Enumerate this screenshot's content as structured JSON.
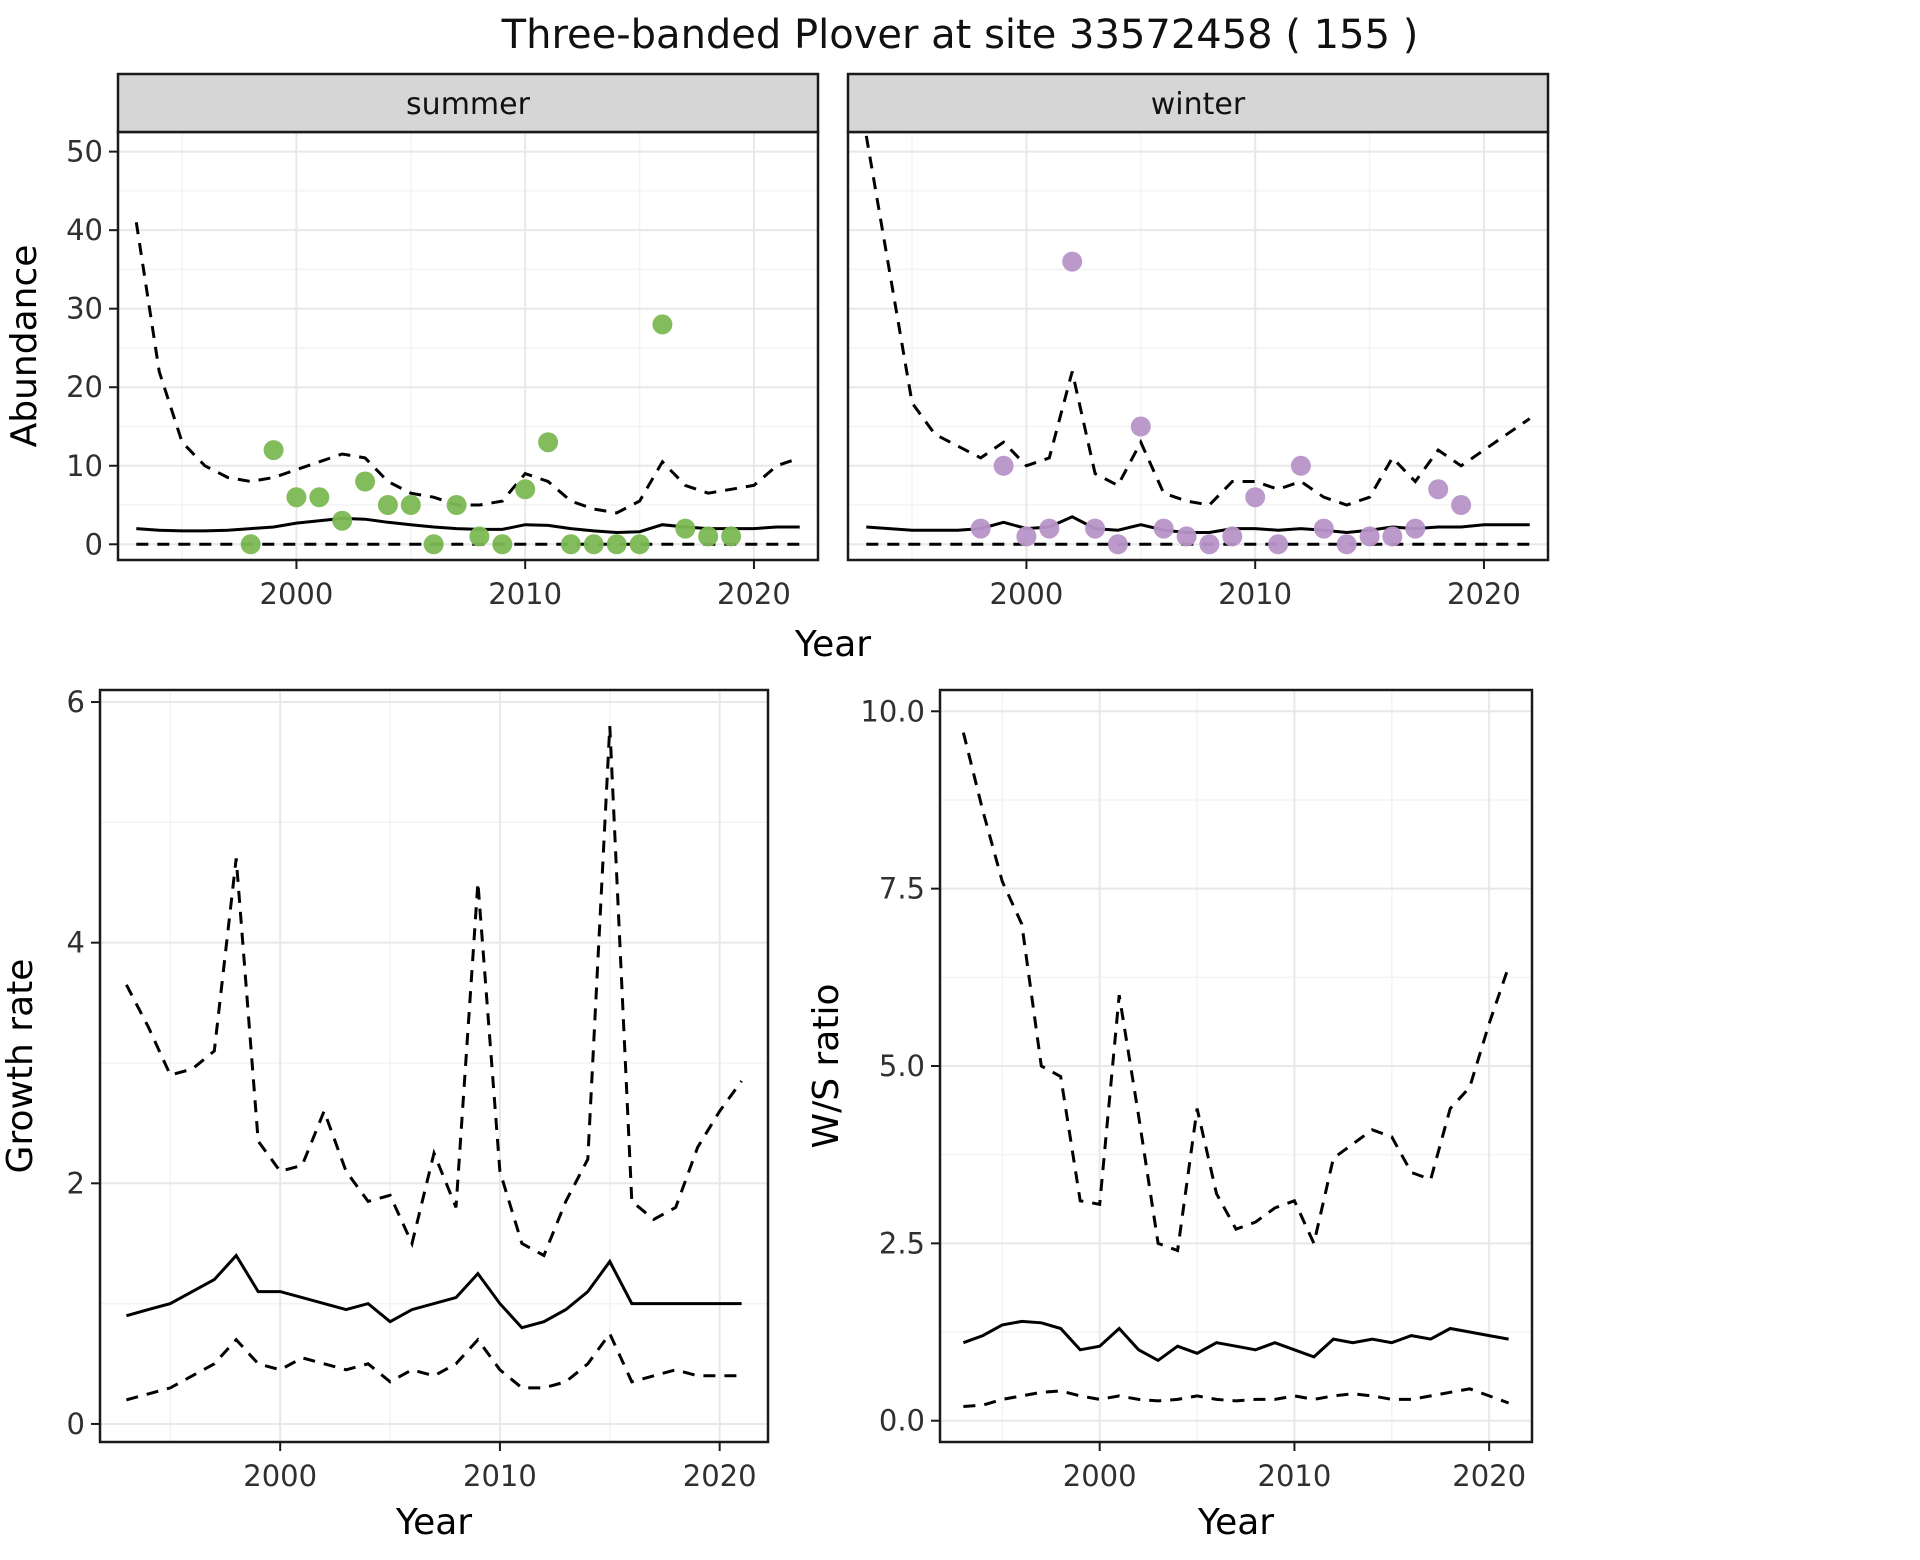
{
  "title": "Three-banded Plover at site 33572458 ( 155 )",
  "colors": {
    "summer_point": "#7cb853",
    "winter_point": "#b893c8",
    "line": "#000000",
    "strip_bg": "#d6d6d6",
    "strip_border": "#1a1a1a",
    "panel_border": "#1a1a1a",
    "grid_major": "#e8e8e8",
    "grid_minor": "#f3f3f3",
    "background": "#ffffff"
  },
  "chart_data": [
    {
      "id": "abundance-summer",
      "type": "scatter",
      "facet_label": "summer",
      "ylabel": "Abundance",
      "xlabel": "Year",
      "xlim": [
        1992.2,
        2022.8
      ],
      "ylim": [
        -2,
        52.5
      ],
      "xticks": [
        2000,
        2010,
        2020
      ],
      "xtick_labels": [
        "2000",
        "2010",
        "2020"
      ],
      "yticks": [
        0,
        10,
        20,
        30,
        40,
        50
      ],
      "ytick_labels": [
        "0",
        "10",
        "20",
        "30",
        "40",
        "50"
      ],
      "point_color": "summer_point",
      "line_x": [
        1993,
        1994,
        1995,
        1996,
        1997,
        1998,
        1999,
        2000,
        2001,
        2002,
        2003,
        2004,
        2005,
        2006,
        2007,
        2008,
        2009,
        2010,
        2011,
        2012,
        2013,
        2014,
        2015,
        2016,
        2017,
        2018,
        2019,
        2020,
        2021,
        2022
      ],
      "upper": [
        41,
        22,
        13,
        10,
        8.5,
        8,
        8.5,
        9.5,
        10.5,
        11.5,
        11,
        8,
        6.5,
        6,
        5,
        5,
        5.5,
        9,
        8,
        5.5,
        4.5,
        4,
        5.5,
        10.5,
        7.5,
        6.5,
        7,
        7.5,
        10,
        11
      ],
      "mean": [
        2,
        1.8,
        1.7,
        1.7,
        1.8,
        2,
        2.2,
        2.7,
        3,
        3.3,
        3.2,
        2.8,
        2.5,
        2.2,
        2,
        1.9,
        1.9,
        2.5,
        2.4,
        2,
        1.7,
        1.5,
        1.6,
        2.5,
        2.2,
        2,
        2,
        2,
        2.2,
        2.2
      ],
      "lower": [
        0,
        0,
        0,
        0,
        0,
        0,
        0,
        0,
        0,
        0,
        0,
        0,
        0,
        0,
        0,
        0,
        0,
        0,
        0,
        0,
        0,
        0,
        0,
        0,
        0,
        0,
        0,
        0,
        0,
        0
      ],
      "points_x": [
        1998,
        1999,
        2000,
        2001,
        2002,
        2003,
        2004,
        2005,
        2006,
        2007,
        2008,
        2009,
        2010,
        2011,
        2012,
        2013,
        2014,
        2015,
        2016,
        2017,
        2018,
        2019
      ],
      "points_y": [
        0,
        12,
        6,
        6,
        3,
        8,
        5,
        5,
        0,
        5,
        1,
        0,
        7,
        13,
        0,
        0,
        0,
        0,
        28,
        2,
        1,
        1
      ]
    },
    {
      "id": "abundance-winter",
      "type": "scatter",
      "facet_label": "winter",
      "ylabel": "",
      "xlabel": "Year",
      "xlim": [
        1992.2,
        2022.8
      ],
      "ylim": [
        -2,
        52.5
      ],
      "xticks": [
        2000,
        2010,
        2020
      ],
      "xtick_labels": [
        "2000",
        "2010",
        "2020"
      ],
      "yticks": [
        0,
        10,
        20,
        30,
        40,
        50
      ],
      "ytick_labels": [
        "0",
        "10",
        "20",
        "30",
        "40",
        "50"
      ],
      "point_color": "winter_point",
      "line_x": [
        1993,
        1994,
        1995,
        1996,
        1997,
        1998,
        1999,
        2000,
        2001,
        2002,
        2003,
        2004,
        2005,
        2006,
        2007,
        2008,
        2009,
        2010,
        2011,
        2012,
        2013,
        2014,
        2015,
        2016,
        2017,
        2018,
        2019,
        2020,
        2021,
        2022
      ],
      "upper": [
        52,
        35,
        18,
        14,
        12.5,
        11,
        13,
        10,
        11,
        22,
        9,
        7.5,
        13,
        6.5,
        5.5,
        5,
        8,
        8,
        7,
        8,
        6,
        5,
        6,
        11,
        8,
        12,
        10,
        12,
        14,
        16
      ],
      "mean": [
        2.2,
        2,
        1.8,
        1.8,
        1.8,
        2,
        2.8,
        2,
        2.2,
        3.5,
        2,
        1.8,
        2.5,
        1.8,
        1.5,
        1.5,
        2,
        2,
        1.8,
        2,
        1.8,
        1.5,
        1.8,
        2.2,
        2,
        2.2,
        2.2,
        2.5,
        2.5,
        2.5
      ],
      "lower": [
        0,
        0,
        0,
        0,
        0,
        0,
        0,
        0,
        0,
        0,
        0,
        0,
        0,
        0,
        0,
        0,
        0,
        0,
        0,
        0,
        0,
        0,
        0,
        0,
        0,
        0,
        0,
        0,
        0,
        0
      ],
      "points_x": [
        1998,
        1999,
        2000,
        2001,
        2002,
        2003,
        2004,
        2005,
        2006,
        2007,
        2008,
        2009,
        2010,
        2011,
        2012,
        2013,
        2014,
        2015,
        2016,
        2017,
        2018,
        2019
      ],
      "points_y": [
        2,
        10,
        1,
        2,
        36,
        2,
        0,
        15,
        2,
        1,
        0,
        1,
        6,
        0,
        10,
        2,
        0,
        1,
        1,
        2,
        7,
        5
      ]
    },
    {
      "id": "growth-rate",
      "type": "line",
      "facet_label": "",
      "ylabel": "Growth rate",
      "xlabel": "Year",
      "xlim": [
        1991.8,
        2022.2
      ],
      "ylim": [
        -0.15,
        6.1
      ],
      "xticks": [
        2000,
        2010,
        2020
      ],
      "xtick_labels": [
        "2000",
        "2010",
        "2020"
      ],
      "yticks": [
        0,
        2,
        4,
        6
      ],
      "ytick_labels": [
        "0",
        "2",
        "4",
        "6"
      ],
      "point_color": "",
      "line_x": [
        1993,
        1994,
        1995,
        1996,
        1997,
        1998,
        1999,
        2000,
        2001,
        2002,
        2003,
        2004,
        2005,
        2006,
        2007,
        2008,
        2009,
        2010,
        2011,
        2012,
        2013,
        2014,
        2015,
        2016,
        2017,
        2018,
        2019,
        2020,
        2021
      ],
      "upper": [
        3.65,
        3.3,
        2.9,
        2.95,
        3.1,
        4.7,
        2.35,
        2.1,
        2.15,
        2.6,
        2.1,
        1.85,
        1.9,
        1.5,
        2.25,
        1.8,
        4.5,
        2.1,
        1.5,
        1.4,
        1.85,
        2.2,
        5.8,
        1.85,
        1.7,
        1.8,
        2.3,
        2.6,
        2.85
      ],
      "mean": [
        0.9,
        0.95,
        1.0,
        1.1,
        1.2,
        1.4,
        1.1,
        1.1,
        1.05,
        1.0,
        0.95,
        1.0,
        0.85,
        0.95,
        1.0,
        1.05,
        1.25,
        1.0,
        0.8,
        0.85,
        0.95,
        1.1,
        1.35,
        1.0,
        1.0,
        1.0,
        1.0,
        1.0,
        1.0
      ],
      "lower": [
        0.2,
        0.25,
        0.3,
        0.4,
        0.5,
        0.7,
        0.5,
        0.45,
        0.55,
        0.5,
        0.45,
        0.5,
        0.35,
        0.45,
        0.4,
        0.5,
        0.7,
        0.45,
        0.3,
        0.3,
        0.35,
        0.5,
        0.75,
        0.35,
        0.4,
        0.45,
        0.4,
        0.4,
        0.4
      ],
      "points_x": [],
      "points_y": []
    },
    {
      "id": "ws-ratio",
      "type": "line",
      "facet_label": "",
      "ylabel": "W/S ratio",
      "xlabel": "Year",
      "xlim": [
        1991.8,
        2022.2
      ],
      "ylim": [
        -0.3,
        10.3
      ],
      "xticks": [
        2000,
        2010,
        2020
      ],
      "xtick_labels": [
        "2000",
        "2010",
        "2020"
      ],
      "yticks": [
        0,
        2.5,
        5,
        7.5,
        10
      ],
      "ytick_labels": [
        "0.0",
        "2.5",
        "5.0",
        "7.5",
        "10.0"
      ],
      "point_color": "",
      "line_x": [
        1993,
        1994,
        1995,
        1996,
        1997,
        1998,
        1999,
        2000,
        2001,
        2002,
        2003,
        2004,
        2005,
        2006,
        2007,
        2008,
        2009,
        2010,
        2011,
        2012,
        2013,
        2014,
        2015,
        2016,
        2017,
        2018,
        2019,
        2020,
        2021
      ],
      "upper": [
        9.7,
        8.6,
        7.6,
        7.0,
        5.0,
        4.85,
        3.1,
        3.05,
        6.0,
        4.3,
        2.5,
        2.4,
        4.4,
        3.2,
        2.7,
        2.8,
        3.0,
        3.1,
        2.5,
        3.7,
        3.9,
        4.1,
        4.0,
        3.5,
        3.4,
        4.4,
        4.7,
        5.6,
        6.4
      ],
      "mean": [
        1.1,
        1.2,
        1.35,
        1.4,
        1.38,
        1.3,
        1.0,
        1.05,
        1.3,
        1.0,
        0.85,
        1.05,
        0.95,
        1.1,
        1.05,
        1.0,
        1.1,
        1.0,
        0.9,
        1.15,
        1.1,
        1.15,
        1.1,
        1.2,
        1.15,
        1.3,
        1.25,
        1.2,
        1.15
      ],
      "lower": [
        0.2,
        0.22,
        0.3,
        0.35,
        0.4,
        0.42,
        0.35,
        0.3,
        0.35,
        0.3,
        0.28,
        0.3,
        0.35,
        0.3,
        0.28,
        0.3,
        0.3,
        0.35,
        0.3,
        0.35,
        0.38,
        0.35,
        0.3,
        0.3,
        0.35,
        0.4,
        0.45,
        0.35,
        0.25
      ],
      "points_x": [],
      "points_y": []
    }
  ]
}
